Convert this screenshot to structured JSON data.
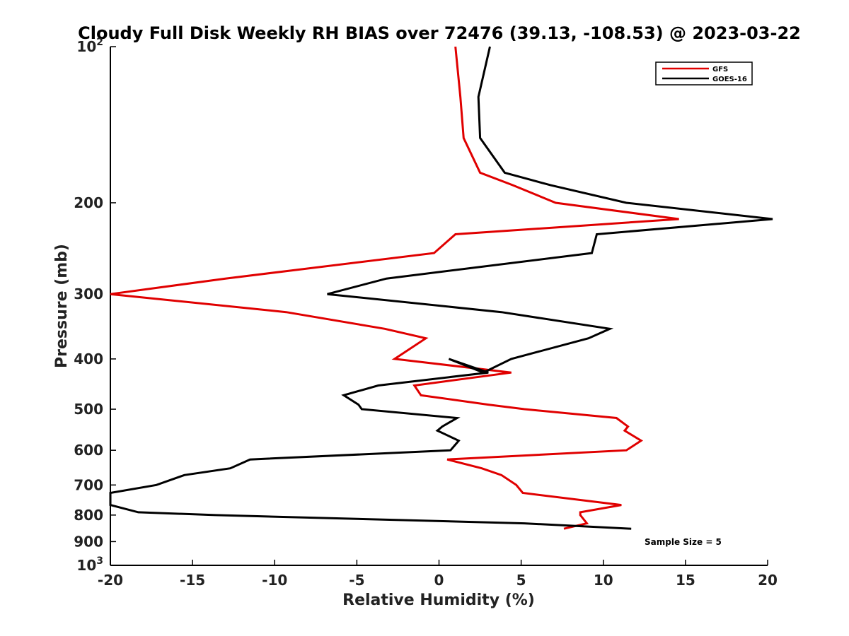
{
  "chart_data": {
    "type": "line",
    "title": "Cloudy Full Disk Weekly RH BIAS over 72476 (39.13, -108.53) @ 2023-03-22",
    "xlabel": "Relative Humidity (%)",
    "ylabel": "Pressure (mb)",
    "xlim": [
      -20,
      20
    ],
    "ylim": [
      100,
      1000
    ],
    "y_scale": "log",
    "y_reversed": true,
    "x_ticks": [
      {
        "value": -20,
        "label": "-20"
      },
      {
        "value": -15,
        "label": "-15"
      },
      {
        "value": -10,
        "label": "-10"
      },
      {
        "value": -5,
        "label": "-5"
      },
      {
        "value": 0,
        "label": "0"
      },
      {
        "value": 5,
        "label": "5"
      },
      {
        "value": 10,
        "label": "10"
      },
      {
        "value": 15,
        "label": "15"
      },
      {
        "value": 20,
        "label": "20"
      }
    ],
    "y_ticks": [
      {
        "value": 100,
        "base": "10",
        "exp": "2"
      },
      {
        "value": 200,
        "base": "200",
        "exp": ""
      },
      {
        "value": 300,
        "base": "300",
        "exp": ""
      },
      {
        "value": 400,
        "base": "400",
        "exp": ""
      },
      {
        "value": 500,
        "base": "500",
        "exp": ""
      },
      {
        "value": 600,
        "base": "600",
        "exp": ""
      },
      {
        "value": 700,
        "base": "700",
        "exp": ""
      },
      {
        "value": 800,
        "base": "800",
        "exp": ""
      },
      {
        "value": 900,
        "base": "900",
        "exp": ""
      },
      {
        "value": 1000,
        "base": "10",
        "exp": "3"
      }
    ],
    "legend_position": "top-right",
    "grid": false,
    "annotation": "Sample Size = 5",
    "series": [
      {
        "name": "GFS",
        "color": "#e00000",
        "points": [
          [
            1.0,
            100
          ],
          [
            1.3,
            125
          ],
          [
            1.5,
            150
          ],
          [
            2.5,
            175
          ],
          [
            4.5,
            185
          ],
          [
            7.1,
            200
          ],
          [
            14.6,
            215
          ],
          [
            1.0,
            230
          ],
          [
            -0.3,
            250
          ],
          [
            -13.0,
            280
          ],
          [
            -20.0,
            300
          ],
          [
            -9.3,
            325
          ],
          [
            -3.3,
            350
          ],
          [
            -0.8,
            365
          ],
          [
            -2.7,
            400
          ],
          [
            4.4,
            425
          ],
          [
            -1.5,
            450
          ],
          [
            -1.1,
            470
          ],
          [
            3.0,
            490
          ],
          [
            5.2,
            500
          ],
          [
            10.8,
            520
          ],
          [
            11.5,
            540
          ],
          [
            11.3,
            550
          ],
          [
            12.3,
            575
          ],
          [
            11.4,
            600
          ],
          [
            0.5,
            625
          ],
          [
            2.6,
            650
          ],
          [
            3.8,
            670
          ],
          [
            4.7,
            700
          ],
          [
            5.1,
            725
          ],
          [
            11.1,
            765
          ],
          [
            8.6,
            790
          ],
          [
            8.6,
            800
          ],
          [
            9.0,
            830
          ],
          [
            7.6,
            850
          ]
        ]
      },
      {
        "name": "GOES-16",
        "color": "#000000",
        "points": [
          [
            3.1,
            100
          ],
          [
            2.4,
            125
          ],
          [
            2.5,
            150
          ],
          [
            4.0,
            175
          ],
          [
            6.8,
            185
          ],
          [
            11.4,
            200
          ],
          [
            20.3,
            215
          ],
          [
            9.6,
            230
          ],
          [
            9.3,
            250
          ],
          [
            -3.2,
            280
          ],
          [
            -6.8,
            300
          ],
          [
            3.8,
            325
          ],
          [
            10.4,
            350
          ],
          [
            9.1,
            365
          ],
          [
            4.4,
            400
          ],
          [
            2.7,
            425
          ],
          [
            0.6,
            400
          ],
          [
            3.0,
            425
          ],
          [
            -3.7,
            450
          ],
          [
            -5.8,
            470
          ],
          [
            -4.9,
            490
          ],
          [
            -4.7,
            500
          ],
          [
            1.1,
            520
          ],
          [
            0.2,
            540
          ],
          [
            -0.1,
            550
          ],
          [
            1.2,
            575
          ],
          [
            0.7,
            600
          ],
          [
            -11.5,
            625
          ],
          [
            -12.7,
            650
          ],
          [
            -15.5,
            670
          ],
          [
            -17.2,
            700
          ],
          [
            -20.0,
            725
          ],
          [
            -20.0,
            765
          ],
          [
            -18.3,
            790
          ],
          [
            -13.6,
            800
          ],
          [
            5.2,
            830
          ],
          [
            11.7,
            850
          ]
        ]
      }
    ]
  }
}
